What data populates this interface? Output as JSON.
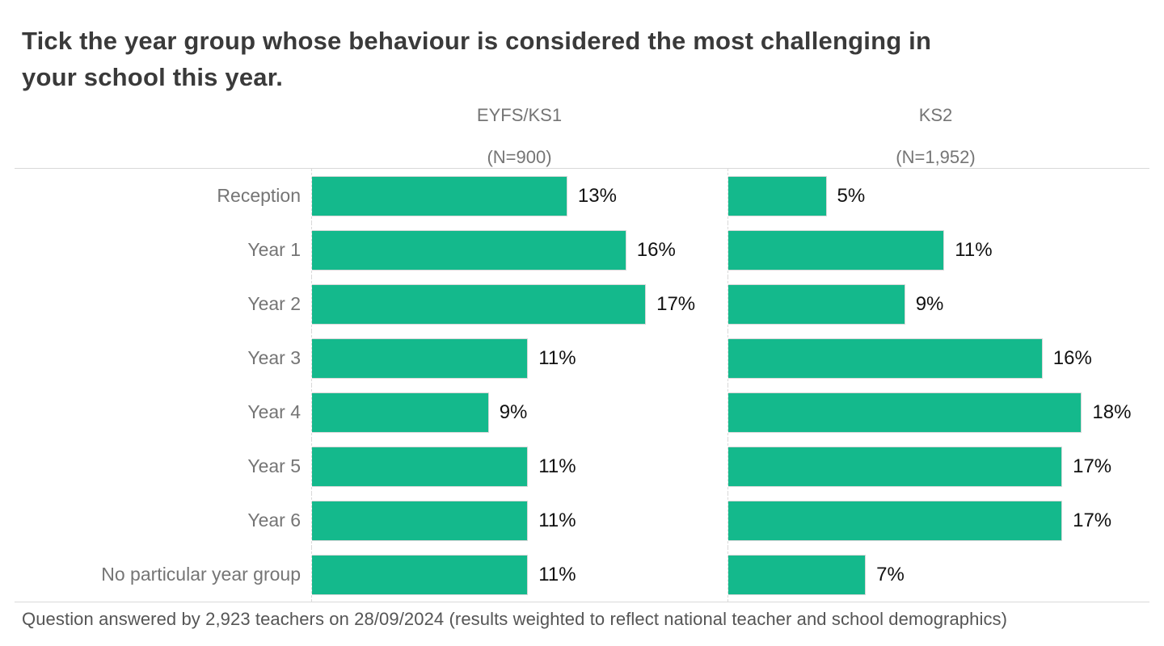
{
  "title_lines": [
    "Tick the year group whose behaviour is considered the most challenging in",
    "your school this year."
  ],
  "footer": "Question answered by 2,923 teachers on 28/09/2024 (results weighted to reflect national teacher and school demographics)",
  "chart_data": {
    "type": "bar",
    "orientation": "horizontal",
    "title": "Tick the year group whose behaviour is considered the most challenging in your school this year.",
    "categories": [
      "Reception",
      "Year 1",
      "Year 2",
      "Year 3",
      "Year 4",
      "Year 5",
      "Year 6",
      "No particular year group"
    ],
    "series": [
      {
        "name": "EYFS/KS1",
        "n_label": "(N=900)",
        "values": [
          13,
          16,
          17,
          11,
          9,
          11,
          11,
          11
        ]
      },
      {
        "name": "KS2",
        "n_label": "(N=1,952)",
        "values": [
          5,
          11,
          9,
          16,
          18,
          17,
          17,
          7
        ]
      }
    ],
    "value_suffix": "%",
    "value_labels": "outside-end",
    "bar_color": "#14B98C",
    "label_color": "#757575",
    "value_color": "#111111",
    "xlim": [
      0,
      20
    ],
    "grid": "dashed-baseline-only",
    "legend_position": "column-headers"
  }
}
